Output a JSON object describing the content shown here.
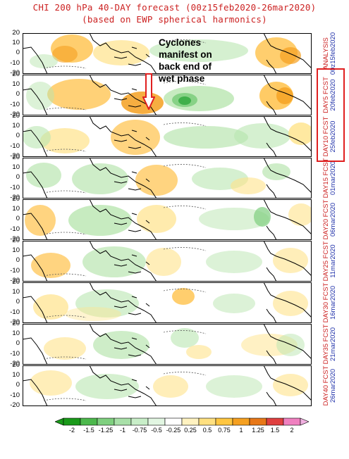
{
  "title": {
    "line1": "CHI 200 hPa 40-DAY forecast (00z15feb2020-26mar2020)",
    "line2": "(based on EWP spherical harmonics)"
  },
  "y_ticks": [
    "20",
    "10",
    "0",
    "-10",
    "-20"
  ],
  "panels": [
    {
      "line1": "ANALYSIS",
      "line2": "00z15feb2020"
    },
    {
      "line1": "DAY5 FCST",
      "line2": "20feb2020"
    },
    {
      "line1": "DAY10 FCST",
      "line2": "25feb2020"
    },
    {
      "line1": "DAY15 FCST",
      "line2": "01mar2020"
    },
    {
      "line1": "DAY20 FCST",
      "line2": "06mar2020"
    },
    {
      "line1": "DAY25 FCST",
      "line2": "11mar2020"
    },
    {
      "line1": "DAY30 FCST",
      "line2": "16mar2020"
    },
    {
      "line1": "DAY35 FCST",
      "line2": "21mar2020"
    },
    {
      "line1": "DAY40 FCST",
      "line2": "26mar2020"
    }
  ],
  "annotation": {
    "lines": [
      "Cyclones",
      "manifest on",
      "back end of",
      "wet phase"
    ]
  },
  "colorbar": {
    "labels": [
      "-2",
      "-1.5",
      "-1.25",
      "-1",
      "-0.75",
      "-0.5",
      "-0.25",
      "0.25",
      "0.5",
      "0.75",
      "1",
      "1.25",
      "1.5",
      "2"
    ],
    "colors": [
      "#1a9a1a",
      "#4cb84c",
      "#7fd07f",
      "#a8e0a8",
      "#c8eec8",
      "#e2f6e2",
      "#ffffff",
      "#fff2c0",
      "#ffe080",
      "#ffc640",
      "#f5a020",
      "#e87818",
      "#e04040",
      "#f080c0"
    ]
  },
  "colors": {
    "title": "#cc2222",
    "panel_label_top": "#cc2222",
    "panel_label_bottom": "#2233aa",
    "highlight": "#e02020"
  }
}
